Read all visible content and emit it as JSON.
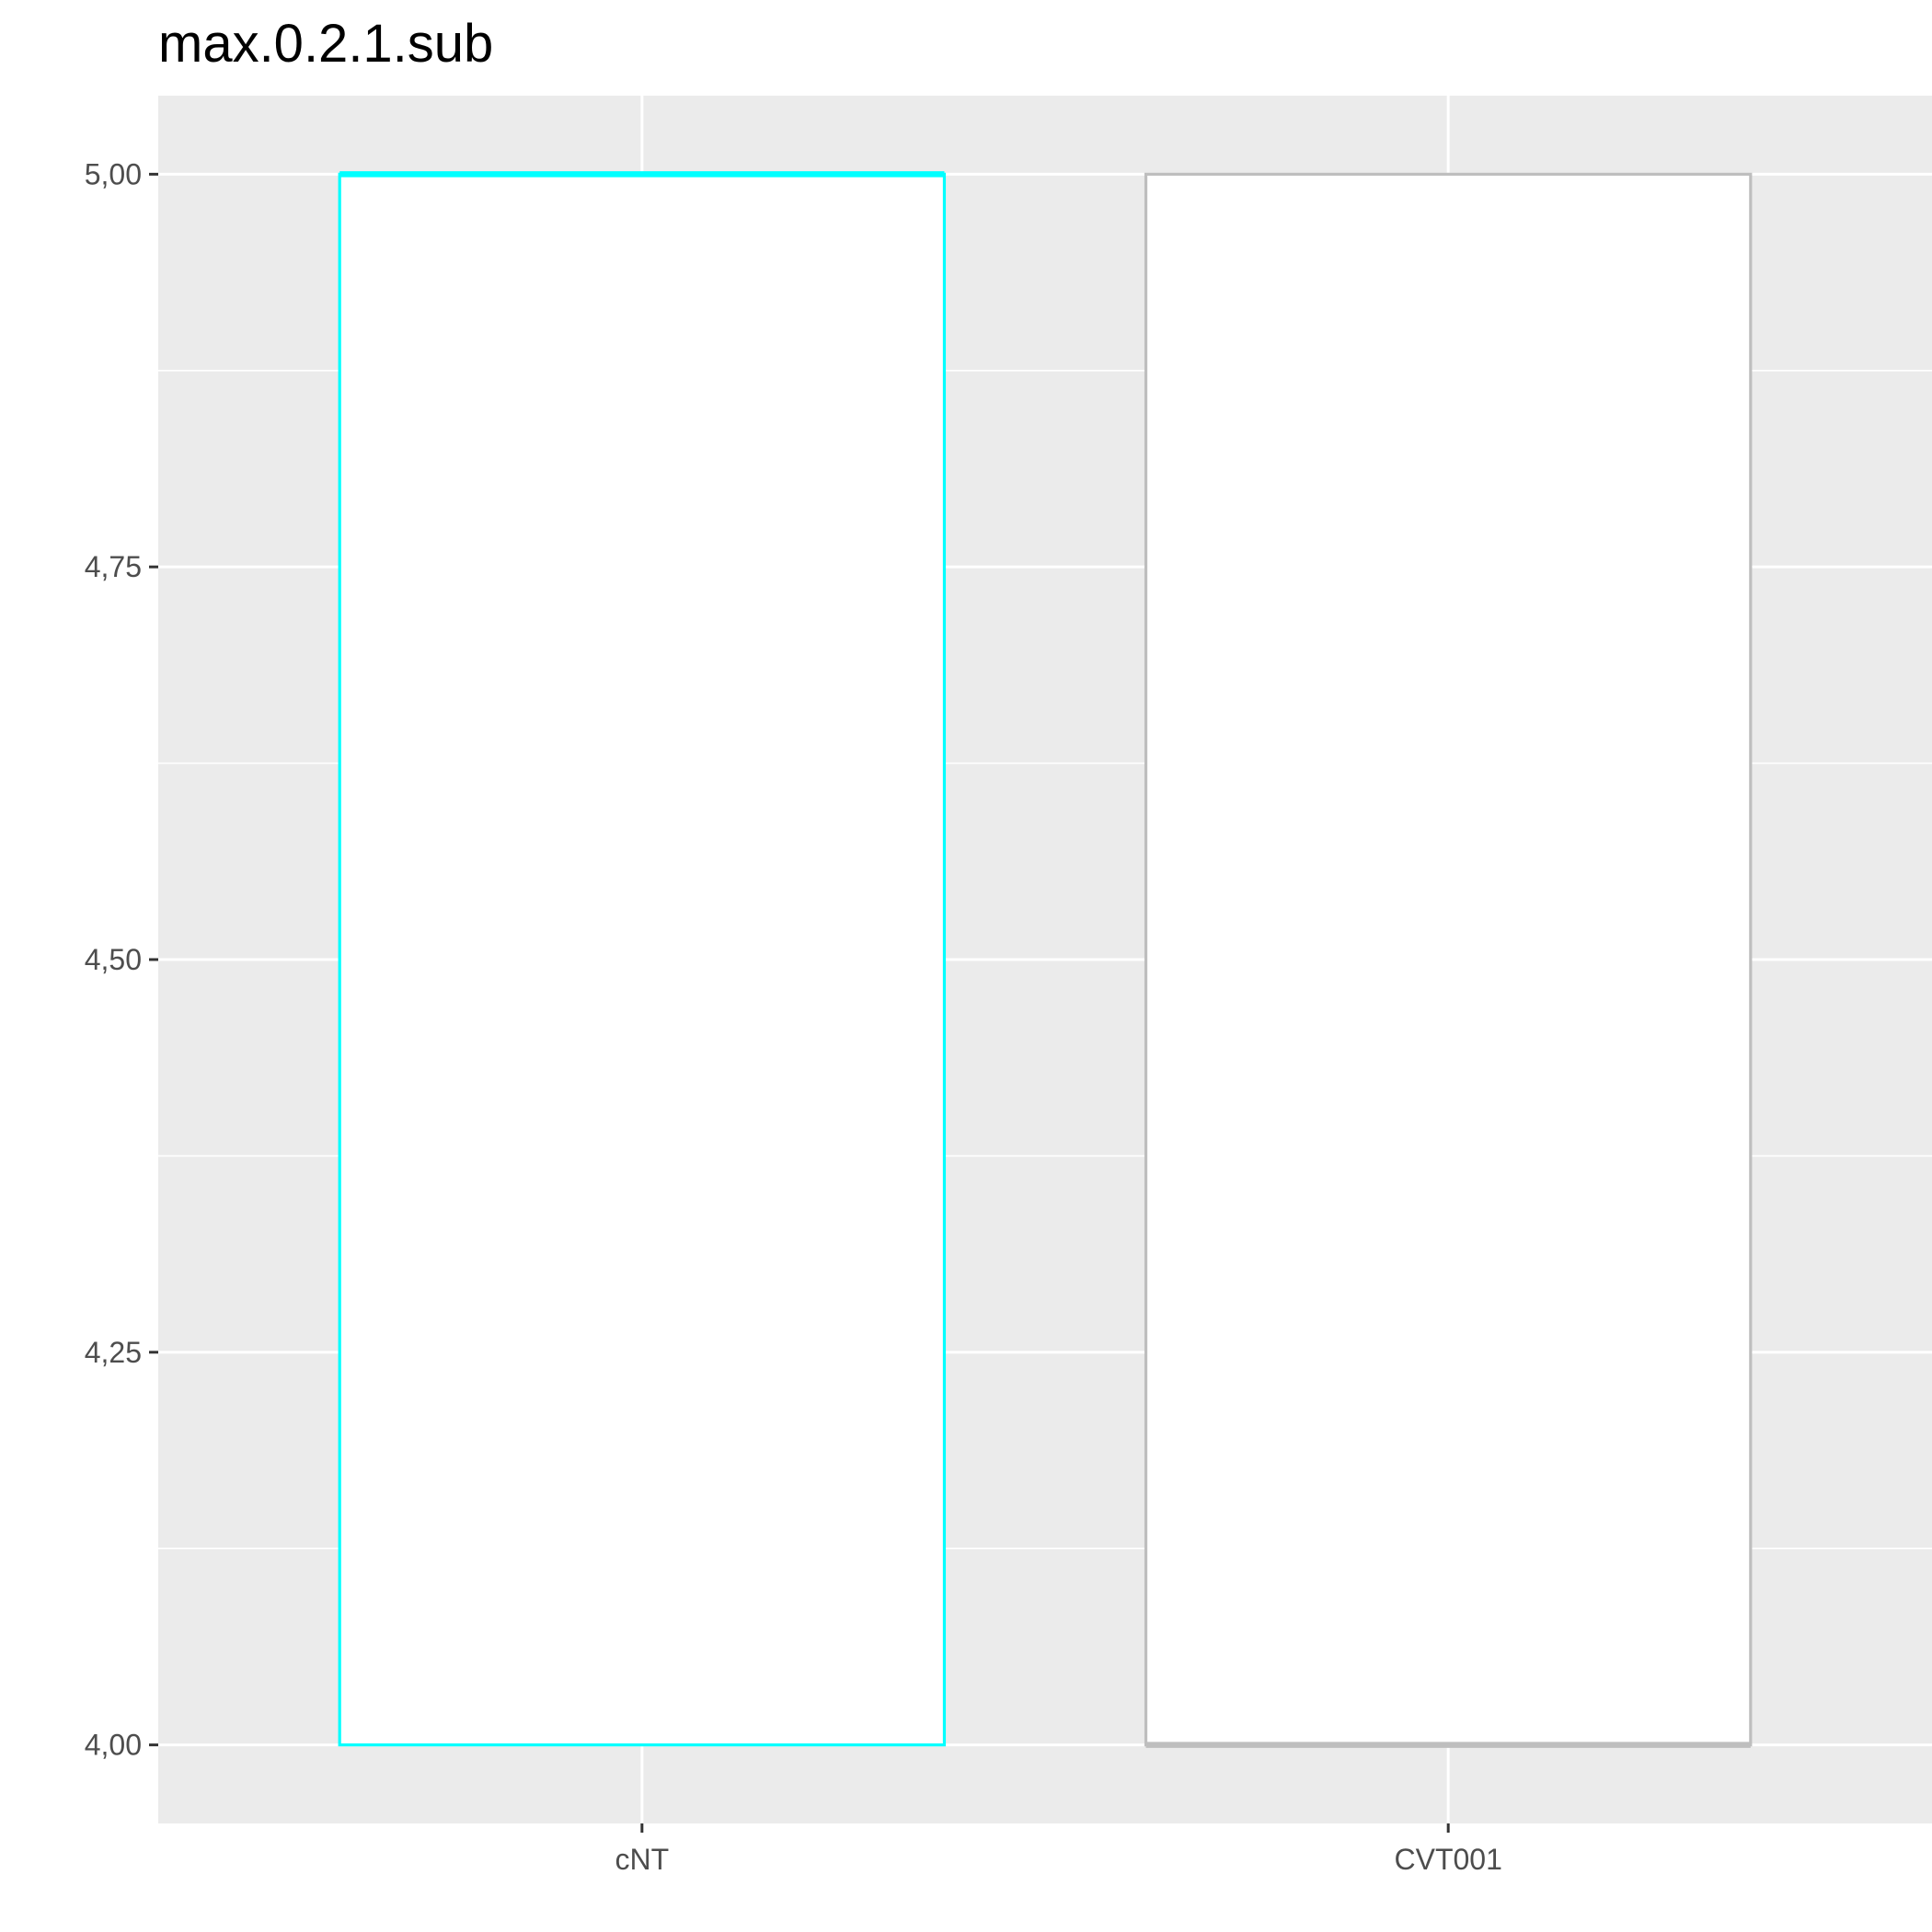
{
  "title": "max.0.2.1.sub",
  "colors": {
    "panel_background": "#EBEBEB",
    "grid": "#FFFFFF",
    "tick_label": "#4D4D4D",
    "tick_mark": "#333333",
    "box_fill": "#FFFFFF"
  },
  "chart_data": {
    "type": "box",
    "title": "max.0.2.1.sub",
    "xlabel": "",
    "ylabel": "",
    "categories": [
      "cNT",
      "CVT001"
    ],
    "boxes": [
      {
        "category": "cNT",
        "lower": 4.0,
        "q1": 4.0,
        "median": 5.0,
        "q3": 5.0,
        "upper": 5.0,
        "outline_color": "#00FFFF"
      },
      {
        "category": "CVT001",
        "lower": 4.0,
        "q1": 4.0,
        "median": 4.0,
        "q3": 5.0,
        "upper": 5.0,
        "outline_color": "#BEBEBE"
      }
    ],
    "y_ticks": [
      {
        "value": 4.0,
        "label": "4,00"
      },
      {
        "value": 4.25,
        "label": "4,25"
      },
      {
        "value": 4.5,
        "label": "4,50"
      },
      {
        "value": 4.75,
        "label": "4,75"
      },
      {
        "value": 5.0,
        "label": "5,00"
      }
    ],
    "y_minor_ticks": [
      4.125,
      4.375,
      4.625,
      4.875
    ],
    "ylim": [
      3.95,
      5.05
    ],
    "grid": true,
    "legend": "none"
  }
}
